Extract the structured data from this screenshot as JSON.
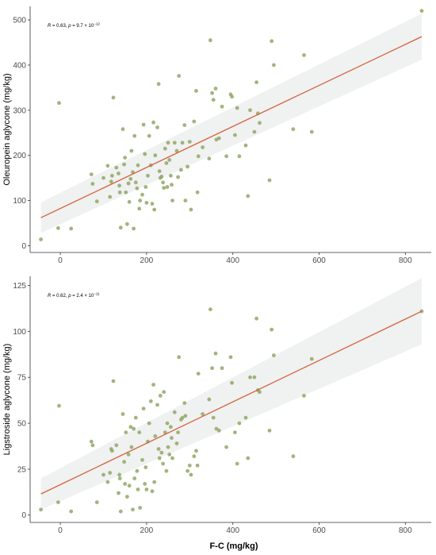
{
  "colors": {
    "point": "#8fa866",
    "line": "#d4623c",
    "band": "#eef0f0",
    "axis": "#333333"
  },
  "xlabel": "F-C (mg/kg)",
  "chart_data": [
    {
      "type": "scatter",
      "xlabel": "F-C (mg/kg)",
      "ylabel": "Oleuropein aglycone (mg/kg)",
      "xlim": [
        -70,
        860
      ],
      "ylim": [
        -15,
        530
      ],
      "xticks": [
        0,
        200,
        400,
        600,
        800
      ],
      "yticks": [
        0,
        100,
        200,
        300,
        400,
        500
      ],
      "annotation": {
        "r_label": "R",
        "r_text": " = 0.63, ",
        "p_label": "p",
        "p_text": " = 9.7 × 10",
        "p_exp": "−12"
      },
      "fit": {
        "x": [
          -45,
          838
        ],
        "y": [
          62,
          463
        ],
        "band_lower": [
          28,
          412
        ],
        "band_upper": [
          96,
          514
        ]
      },
      "points": [
        [
          -45,
          14
        ],
        [
          -5,
          39
        ],
        [
          -3,
          316
        ],
        [
          25,
          38
        ],
        [
          72,
          158
        ],
        [
          75,
          137
        ],
        [
          85,
          98
        ],
        [
          100,
          150
        ],
        [
          110,
          177
        ],
        [
          115,
          108
        ],
        [
          118,
          142
        ],
        [
          120,
          155
        ],
        [
          123,
          328
        ],
        [
          130,
          173
        ],
        [
          135,
          160
        ],
        [
          137,
          133
        ],
        [
          138,
          118
        ],
        [
          140,
          40
        ],
        [
          145,
          258
        ],
        [
          148,
          180
        ],
        [
          150,
          195
        ],
        [
          152,
          118
        ],
        [
          155,
          48
        ],
        [
          158,
          138
        ],
        [
          160,
          97
        ],
        [
          163,
          148
        ],
        [
          165,
          210
        ],
        [
          168,
          163
        ],
        [
          170,
          38
        ],
        [
          172,
          243
        ],
        [
          175,
          140
        ],
        [
          178,
          127
        ],
        [
          180,
          178
        ],
        [
          183,
          82
        ],
        [
          185,
          100
        ],
        [
          190,
          113
        ],
        [
          193,
          268
        ],
        [
          196,
          203
        ],
        [
          198,
          130
        ],
        [
          200,
          95
        ],
        [
          203,
          155
        ],
        [
          206,
          243
        ],
        [
          210,
          178
        ],
        [
          213,
          93
        ],
        [
          216,
          273
        ],
        [
          218,
          80
        ],
        [
          220,
          200
        ],
        [
          225,
          262
        ],
        [
          228,
          358
        ],
        [
          230,
          165
        ],
        [
          232,
          150
        ],
        [
          235,
          153
        ],
        [
          238,
          140
        ],
        [
          240,
          128
        ],
        [
          243,
          215
        ],
        [
          246,
          183
        ],
        [
          248,
          130
        ],
        [
          250,
          228
        ],
        [
          253,
          190
        ],
        [
          256,
          155
        ],
        [
          258,
          135
        ],
        [
          260,
          100
        ],
        [
          265,
          228
        ],
        [
          270,
          210
        ],
        [
          273,
          152
        ],
        [
          275,
          376
        ],
        [
          280,
          168
        ],
        [
          283,
          228
        ],
        [
          288,
          267
        ],
        [
          290,
          100
        ],
        [
          295,
          175
        ],
        [
          300,
          230
        ],
        [
          303,
          80
        ],
        [
          310,
          275
        ],
        [
          315,
          343
        ],
        [
          318,
          118
        ],
        [
          320,
          198
        ],
        [
          330,
          218
        ],
        [
          345,
          193
        ],
        [
          348,
          455
        ],
        [
          352,
          338
        ],
        [
          355,
          323
        ],
        [
          360,
          348
        ],
        [
          362,
          235
        ],
        [
          368,
          238
        ],
        [
          375,
          308
        ],
        [
          385,
          198
        ],
        [
          395,
          335
        ],
        [
          398,
          330
        ],
        [
          405,
          245
        ],
        [
          410,
          305
        ],
        [
          415,
          198
        ],
        [
          430,
          222
        ],
        [
          435,
          110
        ],
        [
          440,
          300
        ],
        [
          450,
          252
        ],
        [
          455,
          362
        ],
        [
          458,
          293
        ],
        [
          462,
          272
        ],
        [
          485,
          145
        ],
        [
          490,
          453
        ],
        [
          495,
          400
        ],
        [
          540,
          258
        ],
        [
          565,
          422
        ],
        [
          583,
          252
        ],
        [
          838,
          520
        ]
      ]
    },
    {
      "type": "scatter",
      "xlabel": "F-C (mg/kg)",
      "ylabel": "Ligstroside aglycone (mg/kg)",
      "xlim": [
        -70,
        860
      ],
      "ylim": [
        -4,
        130
      ],
      "xticks": [
        0,
        200,
        400,
        600,
        800
      ],
      "yticks": [
        0,
        25,
        50,
        75,
        100,
        125
      ],
      "annotation": {
        "r_label": "R",
        "r_text": " = 0.62, ",
        "p_label": "p",
        "p_text": " = 2.4 × 10",
        "p_exp": "−11"
      },
      "fit": {
        "x": [
          -45,
          838
        ],
        "y": [
          11.5,
          111
        ],
        "band_lower": [
          3,
          93
        ],
        "band_upper": [
          20,
          129
        ]
      },
      "points": [
        [
          -45,
          3
        ],
        [
          -5,
          7
        ],
        [
          -3,
          59.5
        ],
        [
          25,
          2
        ],
        [
          72,
          40
        ],
        [
          75,
          38
        ],
        [
          85,
          7
        ],
        [
          100,
          22
        ],
        [
          110,
          18
        ],
        [
          115,
          23
        ],
        [
          118,
          36
        ],
        [
          120,
          35
        ],
        [
          123,
          73
        ],
        [
          130,
          38
        ],
        [
          135,
          12
        ],
        [
          137,
          22
        ],
        [
          138,
          20
        ],
        [
          140,
          2
        ],
        [
          145,
          55
        ],
        [
          148,
          29
        ],
        [
          150,
          17
        ],
        [
          152,
          45
        ],
        [
          155,
          10
        ],
        [
          158,
          33
        ],
        [
          160,
          16
        ],
        [
          163,
          48
        ],
        [
          165,
          37
        ],
        [
          168,
          3
        ],
        [
          170,
          47
        ],
        [
          172,
          20
        ],
        [
          175,
          53
        ],
        [
          178,
          24
        ],
        [
          180,
          14
        ],
        [
          183,
          45
        ],
        [
          185,
          4
        ],
        [
          190,
          30
        ],
        [
          193,
          58
        ],
        [
          196,
          17
        ],
        [
          198,
          26
        ],
        [
          200,
          14
        ],
        [
          203,
          40
        ],
        [
          206,
          50
        ],
        [
          210,
          62
        ],
        [
          213,
          13
        ],
        [
          216,
          71
        ],
        [
          218,
          18
        ],
        [
          220,
          43
        ],
        [
          225,
          60
        ],
        [
          228,
          36
        ],
        [
          230,
          31
        ],
        [
          232,
          65
        ],
        [
          235,
          34
        ],
        [
          238,
          28
        ],
        [
          240,
          67
        ],
        [
          243,
          45
        ],
        [
          246,
          24
        ],
        [
          248,
          50
        ],
        [
          250,
          37
        ],
        [
          253,
          33
        ],
        [
          256,
          48
        ],
        [
          258,
          42
        ],
        [
          260,
          31
        ],
        [
          265,
          56
        ],
        [
          270,
          39
        ],
        [
          273,
          45
        ],
        [
          275,
          86
        ],
        [
          280,
          52
        ],
        [
          283,
          53
        ],
        [
          288,
          61
        ],
        [
          290,
          54
        ],
        [
          295,
          24
        ],
        [
          300,
          27
        ],
        [
          303,
          22
        ],
        [
          310,
          32
        ],
        [
          315,
          35
        ],
        [
          318,
          27
        ],
        [
          320,
          77
        ],
        [
          330,
          55
        ],
        [
          345,
          63
        ],
        [
          348,
          112
        ],
        [
          352,
          80
        ],
        [
          355,
          53
        ],
        [
          360,
          88
        ],
        [
          362,
          47
        ],
        [
          368,
          46
        ],
        [
          375,
          80
        ],
        [
          385,
          37
        ],
        [
          395,
          86
        ],
        [
          398,
          72
        ],
        [
          405,
          45
        ],
        [
          410,
          28
        ],
        [
          415,
          50
        ],
        [
          430,
          53
        ],
        [
          435,
          31
        ],
        [
          440,
          75
        ],
        [
          450,
          75
        ],
        [
          455,
          107
        ],
        [
          458,
          68
        ],
        [
          462,
          67
        ],
        [
          485,
          46
        ],
        [
          490,
          101
        ],
        [
          495,
          87
        ],
        [
          540,
          32
        ],
        [
          565,
          65
        ],
        [
          583,
          85
        ],
        [
          838,
          111
        ]
      ]
    }
  ]
}
